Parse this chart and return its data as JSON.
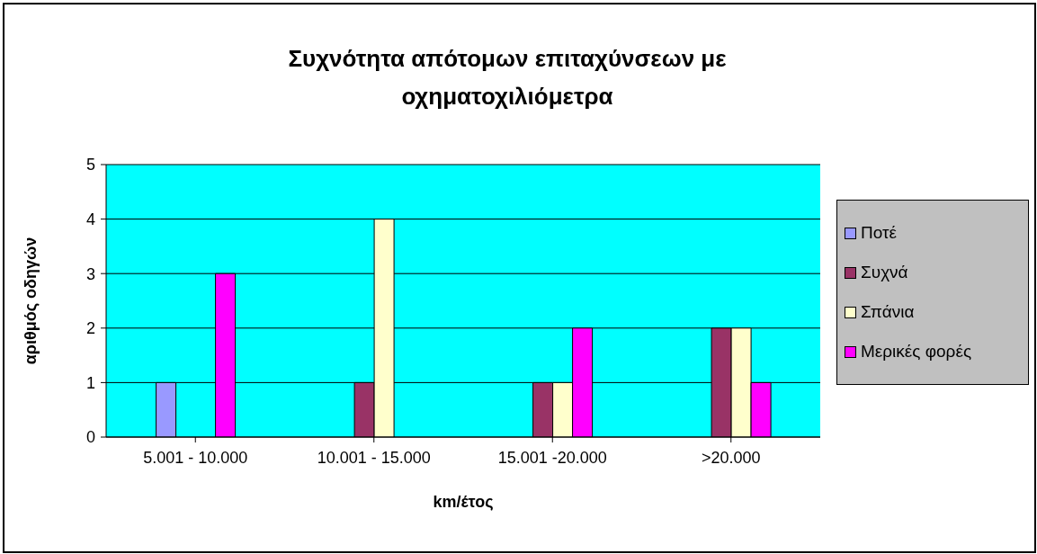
{
  "chart_data": {
    "type": "bar",
    "title": "Συχνότητα απότομων επιταχύνσεων με οχηματοχιλιόμετρα",
    "xlabel": "km/έτος",
    "ylabel": "αριθμός οδηγών",
    "categories": [
      "5.001 - 10.000",
      "10.001 - 15.000",
      "15.001 -20.000",
      ">20.000"
    ],
    "series": [
      {
        "name": "Ποτέ",
        "color": "#9999ff",
        "values": [
          1,
          null,
          null,
          null
        ]
      },
      {
        "name": "Συχνά",
        "color": "#993366",
        "values": [
          null,
          1,
          1,
          2
        ]
      },
      {
        "name": "Σπάνια",
        "color": "#ffffcc",
        "values": [
          null,
          4,
          1,
          2
        ]
      },
      {
        "name": "Μερικές φορές",
        "color": "#ff00ff",
        "values": [
          3,
          null,
          2,
          1
        ]
      }
    ],
    "ylim": [
      0,
      5
    ],
    "yticks": [
      0,
      1,
      2,
      3,
      4,
      5
    ],
    "grid": "y",
    "legend": "right"
  }
}
